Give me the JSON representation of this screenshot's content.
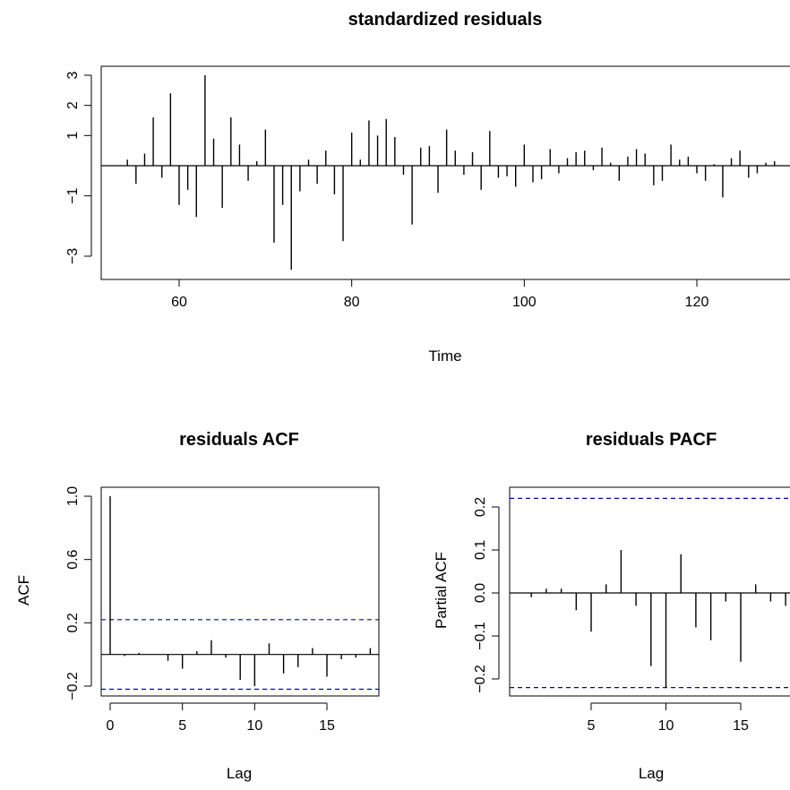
{
  "figure": {
    "background": "#ffffff",
    "line_color": "#000000",
    "band_color": "#0000cc"
  },
  "chart_data": [
    {
      "id": "residuals",
      "type": "line",
      "style": "vertical-spikes",
      "title": "standardized residuals",
      "xlabel": "Time",
      "ylabel": "",
      "xlim": [
        51.5,
        130
      ],
      "ylim": [
        -3.6,
        3.3
      ],
      "xticks": [
        60,
        80,
        100,
        120
      ],
      "yticks": [
        -3,
        -1,
        1,
        2,
        3
      ],
      "baseline": 0,
      "grid": false,
      "x": [
        54,
        55,
        56,
        57,
        58,
        59,
        60,
        61,
        62,
        63,
        64,
        65,
        66,
        67,
        68,
        69,
        70,
        71,
        72,
        73,
        74,
        75,
        76,
        77,
        78,
        79,
        80,
        81,
        82,
        83,
        84,
        85,
        86,
        87,
        88,
        89,
        90,
        91,
        92,
        93,
        94,
        95,
        96,
        97,
        98,
        99,
        100,
        101,
        102,
        103,
        104,
        105,
        106,
        107,
        108,
        109,
        110,
        111,
        112,
        113,
        114,
        115,
        116,
        117,
        118,
        119,
        120,
        121,
        122,
        123,
        124,
        125,
        126,
        127,
        128,
        129
      ],
      "values": [
        0.2,
        -0.6,
        0.4,
        1.6,
        -0.4,
        2.4,
        -1.3,
        -0.8,
        -1.7,
        3.0,
        0.9,
        -1.4,
        1.6,
        0.7,
        -0.5,
        0.15,
        1.2,
        -2.55,
        -1.3,
        -3.45,
        -0.85,
        0.2,
        -0.6,
        0.5,
        -0.95,
        -2.5,
        1.1,
        0.2,
        1.5,
        1.0,
        1.55,
        0.95,
        -0.3,
        -1.95,
        0.6,
        0.65,
        -0.9,
        1.2,
        0.5,
        -0.3,
        0.45,
        -0.8,
        1.15,
        -0.4,
        -0.35,
        -0.7,
        0.7,
        -0.55,
        -0.45,
        0.55,
        -0.25,
        0.25,
        0.45,
        0.5,
        -0.15,
        0.6,
        0.1,
        -0.5,
        0.3,
        0.55,
        0.4,
        -0.65,
        -0.5,
        0.7,
        0.2,
        0.3,
        -0.25,
        -0.5,
        0.05,
        -1.05,
        0.25,
        0.5,
        -0.4,
        -0.25,
        0.1,
        0.15
      ]
    },
    {
      "id": "acf",
      "type": "bar",
      "style": "vertical-spikes",
      "title": "residuals ACF",
      "xlabel": "Lag",
      "ylabel": "ACF",
      "xlim": [
        -0.7,
        18.3
      ],
      "ylim": [
        -0.28,
        1.05
      ],
      "xticks": [
        0,
        5,
        10,
        15
      ],
      "yticks": [
        -0.2,
        0.2,
        0.6,
        1.0
      ],
      "ytick_labels": [
        "−0.2",
        "0.2",
        "0.6",
        "1.0"
      ],
      "confidence_band": [
        -0.22,
        0.22
      ],
      "grid": false,
      "x": [
        0,
        1,
        2,
        3,
        4,
        5,
        6,
        7,
        8,
        9,
        10,
        11,
        12,
        13,
        14,
        15,
        16,
        17,
        18
      ],
      "values": [
        1.0,
        -0.01,
        0.01,
        0.0,
        -0.04,
        -0.09,
        0.02,
        0.09,
        -0.02,
        -0.16,
        -0.2,
        0.07,
        -0.12,
        -0.08,
        0.04,
        -0.14,
        -0.03,
        -0.02,
        0.04
      ]
    },
    {
      "id": "pacf",
      "type": "bar",
      "style": "vertical-spikes",
      "title": "residuals PACF",
      "xlabel": "Lag",
      "ylabel": "Partial ACF",
      "xlim": [
        0.3,
        18.0
      ],
      "ylim": [
        -0.24,
        0.24
      ],
      "xticks": [
        5,
        10,
        15
      ],
      "yticks": [
        -0.2,
        -0.1,
        0.0,
        0.1,
        0.2
      ],
      "ytick_labels": [
        "−0.2",
        "−0.1",
        "0.0",
        "0.1",
        "0.2"
      ],
      "confidence_band": [
        -0.22,
        0.22
      ],
      "grid": false,
      "x": [
        1,
        2,
        3,
        4,
        5,
        6,
        7,
        8,
        9,
        10,
        11,
        12,
        13,
        14,
        15,
        16,
        17,
        18
      ],
      "values": [
        -0.01,
        0.01,
        0.01,
        -0.04,
        -0.09,
        0.02,
        0.1,
        -0.03,
        -0.17,
        -0.22,
        0.09,
        -0.08,
        -0.11,
        -0.02,
        -0.16,
        0.02,
        -0.02,
        -0.03
      ]
    }
  ]
}
